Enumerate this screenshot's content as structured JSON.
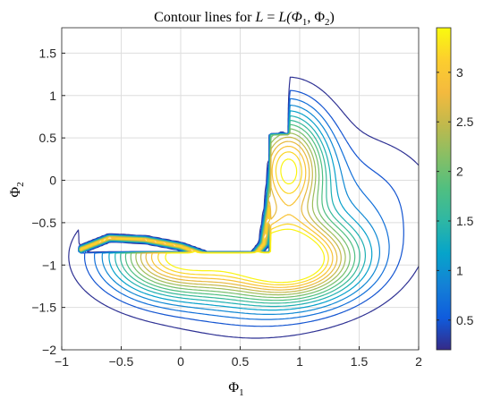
{
  "chart_data": {
    "type": "contour",
    "title_prefix": "Contour lines for ",
    "title_lhs": "L",
    "title_eq": " = ",
    "title_rhs": "L(Φ",
    "title_sub1": "1",
    "title_mid": ", Φ",
    "title_sub2": "2",
    "title_close": ")",
    "xlabel": "Φ",
    "xlabel_sub": "1",
    "ylabel": "Φ",
    "ylabel_sub": "2",
    "xlim": [
      -1,
      2
    ],
    "ylim": [
      -2,
      1.8
    ],
    "xticks": [
      -1,
      -0.5,
      0,
      0.5,
      1,
      1.5,
      2
    ],
    "yticks": [
      -2,
      -1.5,
      -1,
      -0.5,
      0,
      0.5,
      1,
      1.5
    ],
    "xtick_labels": [
      "−1",
      "−0.5",
      "0",
      "0.5",
      "1",
      "1.5",
      "2"
    ],
    "ytick_labels": [
      "−2",
      "−1.5",
      "−1",
      "−0.5",
      "0",
      "0.5",
      "1",
      "1.5"
    ],
    "grid": true,
    "colormap": "parula",
    "clim": [
      0.2,
      3.45
    ],
    "colorbar_ticks": [
      0.5,
      1,
      1.5,
      2,
      2.5,
      3
    ],
    "colorbar_tick_labels": [
      "0.5",
      "1",
      "1.5",
      "2",
      "2.5",
      "3"
    ],
    "colorbar_placement": "right",
    "levels": [
      0.25,
      0.48,
      0.7,
      0.92,
      1.15,
      1.38,
      1.6,
      1.82,
      2.05,
      2.28,
      2.5,
      2.72,
      2.95,
      3.18,
      3.4
    ],
    "ridge_path": [
      [
        0.45,
        -0.95
      ],
      [
        0.6,
        -0.92
      ],
      [
        0.7,
        -0.75
      ],
      [
        0.75,
        -0.3
      ],
      [
        0.78,
        0.2
      ],
      [
        0.85,
        0.52
      ]
    ],
    "ridge_left_edge": [
      [
        -0.85,
        -0.82
      ],
      [
        -0.6,
        -0.68
      ],
      [
        -0.3,
        -0.7
      ],
      [
        0.0,
        -0.78
      ],
      [
        0.2,
        -0.88
      ],
      [
        0.35,
        -0.95
      ]
    ],
    "peaks": [
      {
        "x": 0.95,
        "y": -0.95,
        "value": 3.4
      },
      {
        "x": -0.05,
        "y": -0.9,
        "value": 3.1
      },
      {
        "x": 0.9,
        "y": 0.15,
        "value": 3.2
      }
    ]
  }
}
